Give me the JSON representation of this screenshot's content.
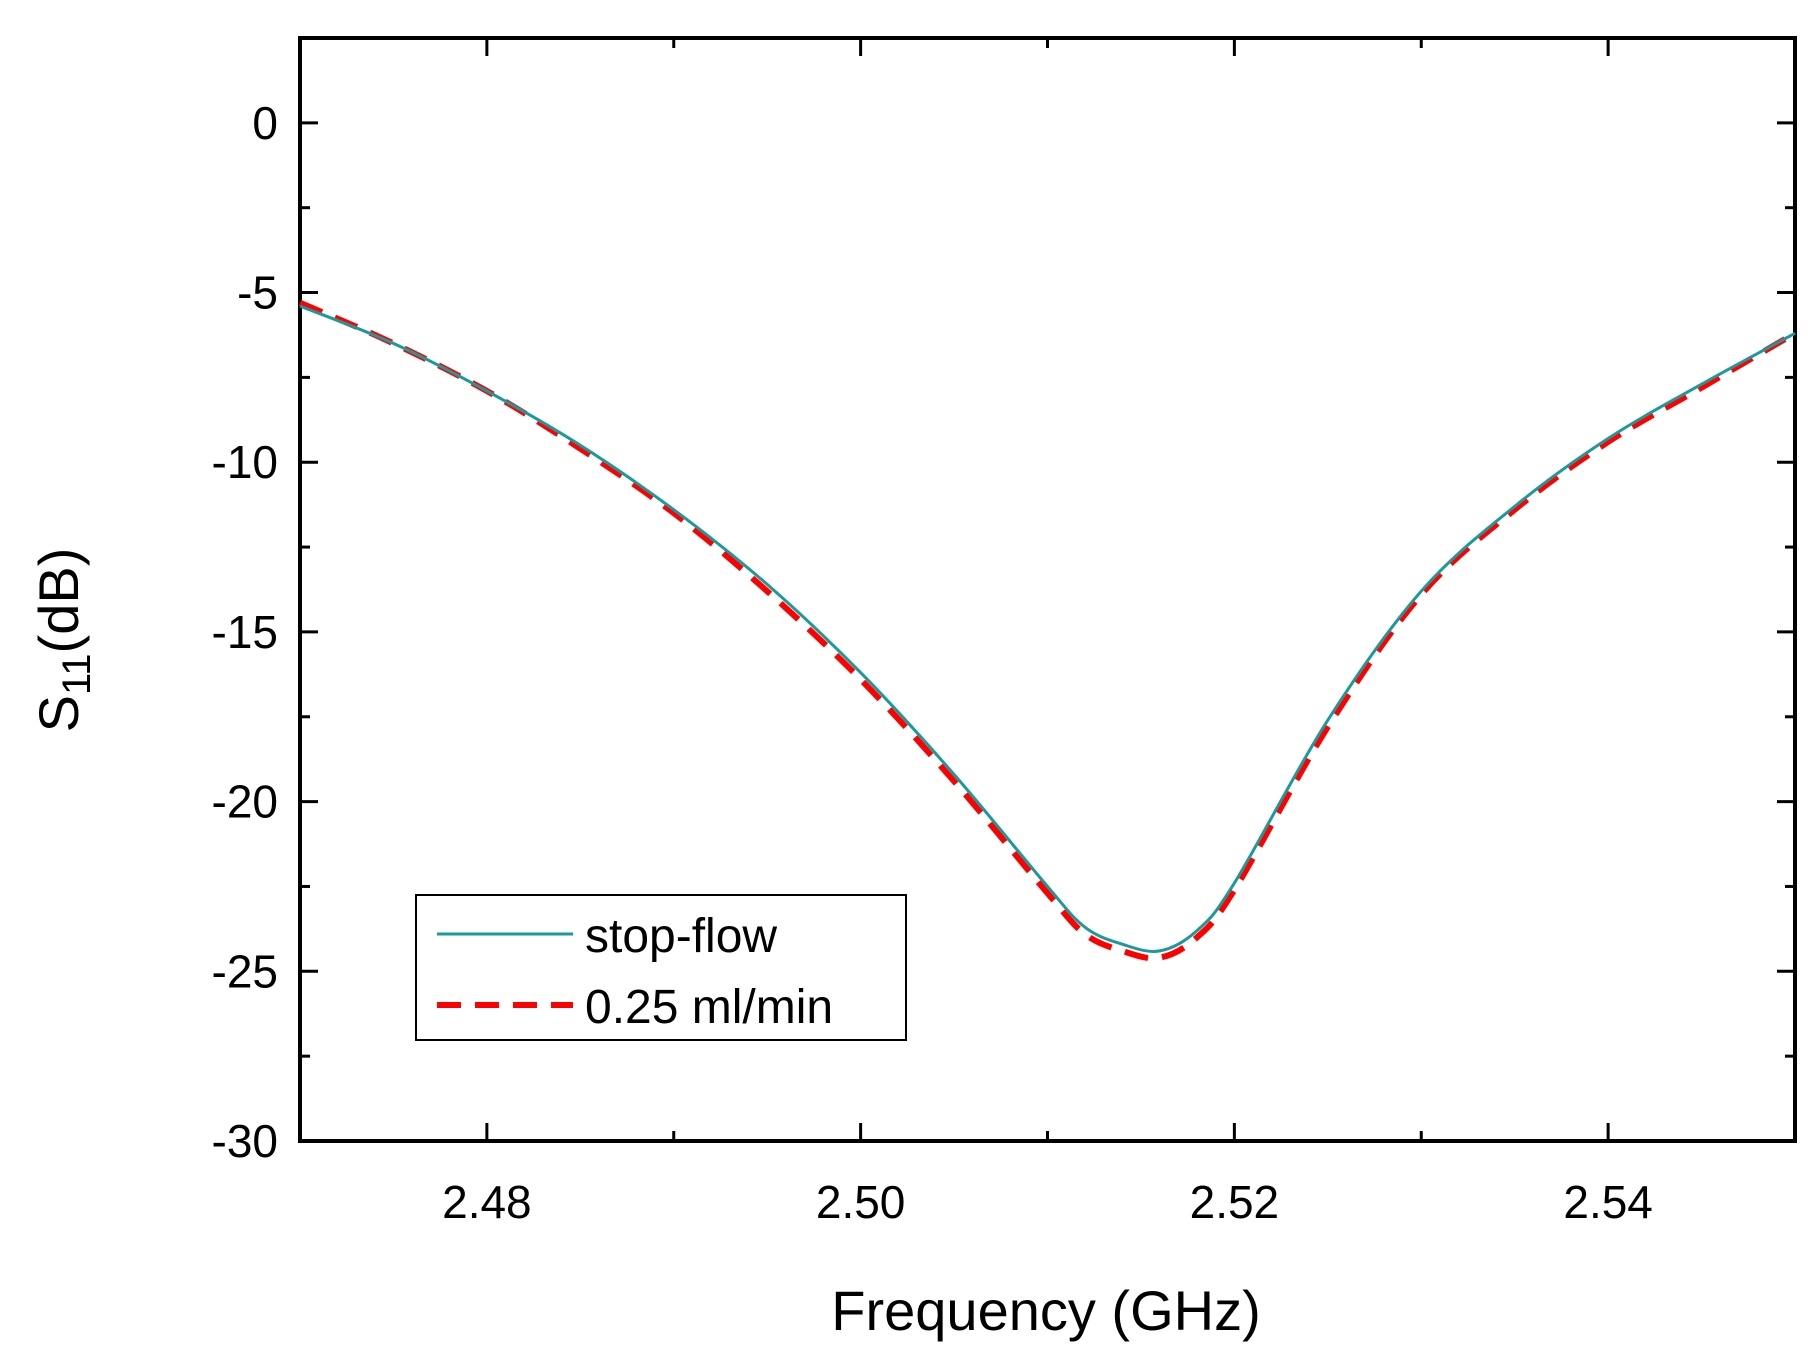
{
  "chart_data": {
    "type": "line",
    "title": "",
    "xlabel": "Frequency (GHz)",
    "ylabel_main": "S",
    "ylabel_sub": "11",
    "ylabel_unit": "(dB)",
    "xlim": [
      2.47,
      2.55
    ],
    "ylim": [
      -30,
      2.5
    ],
    "xticks": [
      2.48,
      2.5,
      2.52,
      2.54
    ],
    "xtick_labels": [
      "2.48",
      "2.50",
      "2.52",
      "2.54"
    ],
    "yticks": [
      0,
      -5,
      -10,
      -15,
      -20,
      -25,
      -30
    ],
    "ytick_labels": [
      "0",
      "-5",
      "-10",
      "-15",
      "-20",
      "-25",
      "-30"
    ],
    "grid": false,
    "legend_position": "lower-left",
    "series": [
      {
        "name": "stop-flow",
        "color": "#1a9a9a",
        "style": "solid",
        "x": [
          2.47,
          2.475,
          2.48,
          2.485,
          2.49,
          2.495,
          2.5,
          2.505,
          2.51,
          2.512,
          2.514,
          2.516,
          2.518,
          2.52,
          2.525,
          2.53,
          2.535,
          2.54,
          2.545,
          2.55
        ],
        "y": [
          -5.4,
          -6.5,
          -7.9,
          -9.5,
          -11.4,
          -13.6,
          -16.2,
          -19.2,
          -22.5,
          -23.7,
          -24.2,
          -24.4,
          -23.8,
          -22.4,
          -17.6,
          -13.8,
          -11.3,
          -9.3,
          -7.7,
          -6.2
        ]
      },
      {
        "name": "0.25 ml/min",
        "color": "#ff0000",
        "style": "dashed",
        "x": [
          2.47,
          2.475,
          2.48,
          2.485,
          2.49,
          2.495,
          2.5,
          2.505,
          2.51,
          2.512,
          2.514,
          2.516,
          2.518,
          2.52,
          2.525,
          2.53,
          2.535,
          2.54,
          2.545,
          2.55
        ],
        "y": [
          -5.3,
          -6.5,
          -7.9,
          -9.6,
          -11.5,
          -13.8,
          -16.4,
          -19.4,
          -22.7,
          -23.9,
          -24.4,
          -24.6,
          -24.0,
          -22.6,
          -17.8,
          -13.9,
          -11.4,
          -9.4,
          -7.8,
          -6.2
        ]
      }
    ]
  }
}
